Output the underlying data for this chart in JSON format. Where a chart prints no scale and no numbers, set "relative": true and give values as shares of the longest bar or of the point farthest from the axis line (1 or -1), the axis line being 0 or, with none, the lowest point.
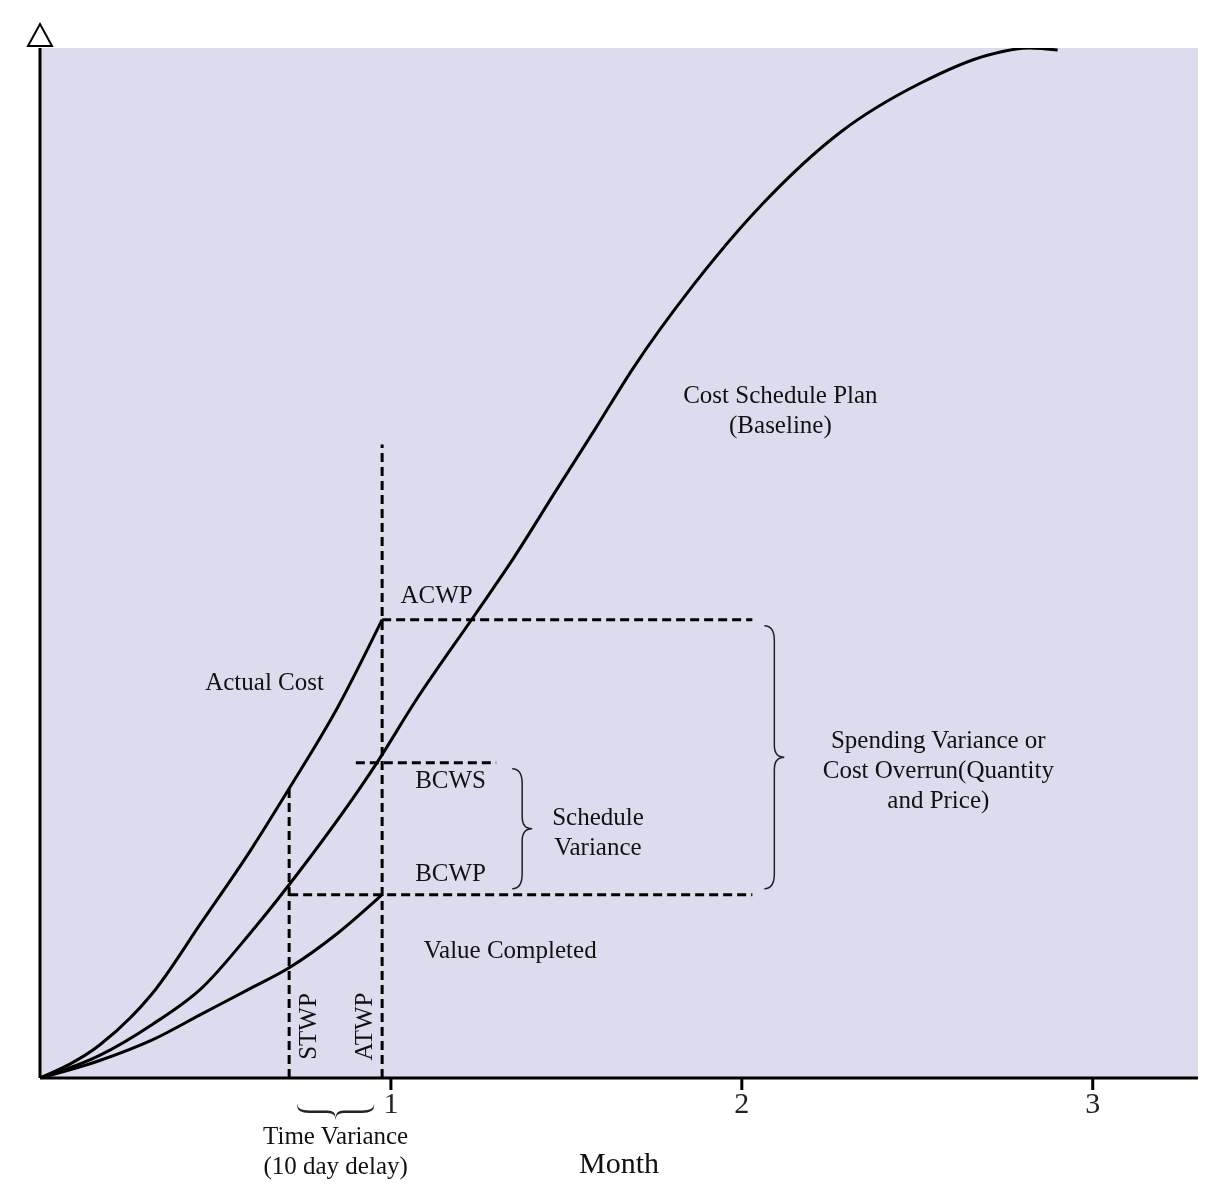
{
  "chart_data": {
    "type": "line",
    "relative": true,
    "xlabel": "Month",
    "xlim": [
      0,
      3.3
    ],
    "xticks": [
      1,
      2,
      3
    ],
    "grid": false,
    "series": [
      {
        "color": "#000000",
        "x": [
          0,
          0.17,
          0.32,
          0.46,
          0.6,
          0.74,
          0.96,
          1.07,
          1.24,
          1.35,
          1.47,
          1.58,
          1.69,
          1.86,
          2.06,
          2.28,
          2.51,
          2.7,
          2.82,
          2.9
        ],
        "values": [
          0,
          0.022,
          0.052,
          0.087,
          0.141,
          0.201,
          0.306,
          0.366,
          0.45,
          0.505,
          0.57,
          0.629,
          0.689,
          0.769,
          0.849,
          0.918,
          0.966,
          0.993,
          1,
          0.998
        ]
      },
      {
        "color": "#000000",
        "x": [
          0,
          0.17,
          0.32,
          0.46,
          0.6,
          0.71,
          0.85,
          0.975
        ],
        "values": [
          0,
          0.032,
          0.082,
          0.151,
          0.221,
          0.281,
          0.361,
          0.445
        ]
      },
      {
        "color": "#000000",
        "x": [
          0,
          0.17,
          0.32,
          0.46,
          0.6,
          0.71,
          0.85,
          0.975
        ],
        "values": [
          0,
          0.017,
          0.037,
          0.062,
          0.087,
          0.107,
          0.141,
          0.178
        ]
      },
      {
        "color": "#000000",
        "line_style": "dashed",
        "x": [
          0.71,
          0.71
        ],
        "values": [
          0,
          0.281
        ]
      },
      {
        "color": "#000000",
        "line_style": "dashed",
        "x": [
          0.975,
          0.975
        ],
        "values": [
          0,
          0.615
        ]
      },
      {
        "color": "#000000",
        "line_style": "dashed",
        "x": [
          0.975,
          2.03
        ],
        "values": [
          0.445,
          0.445
        ]
      },
      {
        "color": "#000000",
        "line_style": "dashed",
        "x": [
          0.9,
          1.3
        ],
        "values": [
          0.306,
          0.306
        ]
      },
      {
        "color": "#000000",
        "line_style": "dashed",
        "x": [
          0.71,
          2.03
        ],
        "values": [
          0.178,
          0.178
        ]
      }
    ],
    "annotations": [
      "Cost Schedule Plan\n(Baseline)",
      "Actual Cost",
      "ACWP",
      "BCWS",
      "BCWP",
      "Schedule\nVariance",
      "Value Completed",
      "Spending Variance or\nCost Overrun(Quantity\nand Price)",
      "STWP",
      "ATWP",
      "Time Variance\n(10 day delay)"
    ]
  }
}
